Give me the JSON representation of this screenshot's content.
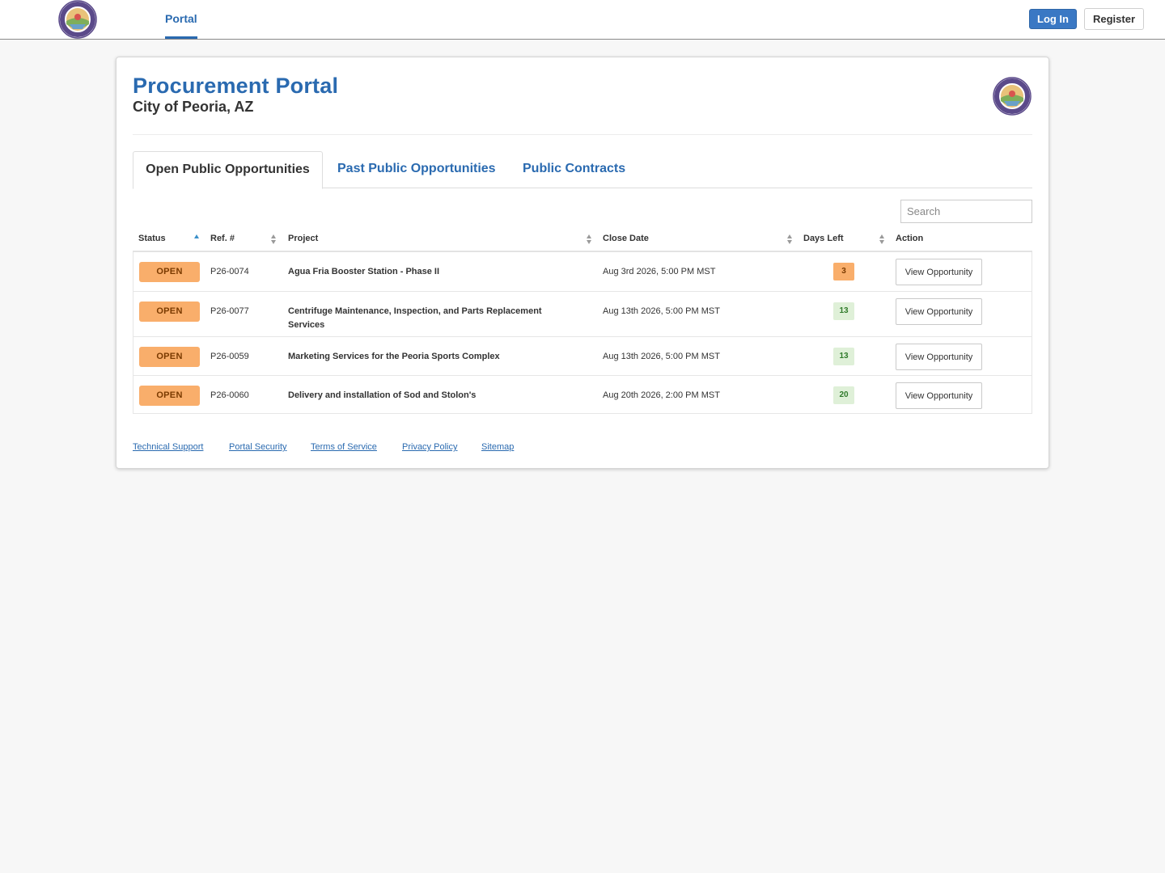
{
  "nav": {
    "logo_icon": "peoria-arizona-seal-icon",
    "portal_label": "Portal",
    "login_label": "Log In",
    "register_label": "Register"
  },
  "header": {
    "title": "Procurement Portal",
    "subtitle": "City of Peoria, AZ"
  },
  "tabs": [
    {
      "label": "Open Public Opportunities",
      "active": true
    },
    {
      "label": "Past Public Opportunities",
      "active": false
    },
    {
      "label": "Public Contracts",
      "active": false
    }
  ],
  "search": {
    "placeholder": "Search",
    "value": ""
  },
  "table": {
    "columns": [
      "Status",
      "Ref. #",
      "Project",
      "Close Date",
      "Days Left",
      "Action"
    ],
    "rows": [
      {
        "status": "OPEN",
        "ref": "P26-0074",
        "project": "Agua Fria Booster Station - Phase II",
        "close_date": "Aug 3rd 2026, 5:00 PM MST",
        "days_left": "3",
        "action": "View Opportunity"
      },
      {
        "status": "OPEN",
        "ref": "P26-0077",
        "project": "Centrifuge Maintenance, Inspection, and Parts Replacement Services",
        "close_date": "Aug 13th 2026, 5:00 PM MST",
        "days_left": "13",
        "action": "View Opportunity"
      },
      {
        "status": "OPEN",
        "ref": "P26-0059",
        "project": "Marketing Services for the Peoria Sports Complex",
        "close_date": "Aug 13th 2026, 5:00 PM MST",
        "days_left": "13",
        "action": "View Opportunity"
      },
      {
        "status": "OPEN",
        "ref": "P26-0060",
        "project": "Delivery and installation of Sod and Stolon's",
        "close_date": "Aug 20th 2026, 2:00 PM MST",
        "days_left": "20",
        "action": "View Opportunity"
      }
    ]
  },
  "footer": {
    "links": [
      "Technical Support",
      "Portal Security",
      "Terms of Service",
      "Privacy Policy",
      "Sitemap"
    ]
  },
  "colors": {
    "brand_blue": "#2a6ab0",
    "open_badge": "#f9ae6b",
    "days_ok": "#dff0d8"
  }
}
